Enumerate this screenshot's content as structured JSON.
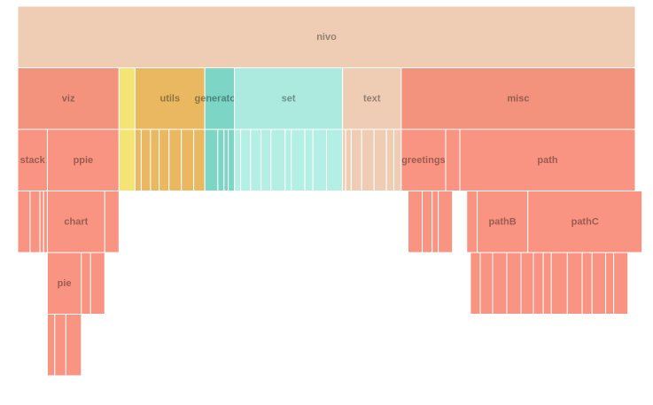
{
  "colors": {
    "peach": "#eecdb4",
    "salmon": "#f4937d",
    "coral": "#fa9482",
    "yellow": "#f4e476",
    "amber": "#e9b861",
    "teal": "#7dd5c5",
    "aqua": "#ace9df",
    "lightAqua": "#b3efe4"
  },
  "chart_data": {
    "type": "icicle",
    "title": "",
    "rows": [
      [
        {
          "name": "nivo",
          "value": 100,
          "color": "peach"
        }
      ],
      [
        {
          "name": "viz",
          "value": 16.4,
          "color": "salmon"
        },
        {
          "name": "",
          "value": 2.6,
          "color": "yellow"
        },
        {
          "name": "utils",
          "value": 11.3,
          "color": "amber"
        },
        {
          "name": "generators",
          "value": 4.8,
          "color": "teal"
        },
        {
          "name": "set",
          "value": 17.5,
          "color": "aqua"
        },
        {
          "name": "text",
          "value": 9.5,
          "color": "peach"
        },
        {
          "name": "misc",
          "value": 37.9,
          "color": "salmon"
        }
      ],
      [
        {
          "name": "stack",
          "value": 4.8,
          "color": "coral"
        },
        {
          "name": "ppie",
          "value": 11.6,
          "color": "coral"
        },
        {
          "name": "",
          "value": 2.6,
          "color": "yellow"
        },
        {
          "name": "",
          "value": 1.0,
          "color": "amber"
        },
        {
          "name": "",
          "value": 1.5,
          "color": "amber"
        },
        {
          "name": "",
          "value": 1.4,
          "color": "amber"
        },
        {
          "name": "",
          "value": 1.6,
          "color": "amber"
        },
        {
          "name": "",
          "value": 2.0,
          "color": "amber"
        },
        {
          "name": "",
          "value": 2.0,
          "color": "amber"
        },
        {
          "name": "",
          "value": 1.8,
          "color": "amber"
        },
        {
          "name": "",
          "value": 2.1,
          "color": "teal"
        },
        {
          "name": "",
          "value": 1.0,
          "color": "teal"
        },
        {
          "name": "",
          "value": 0.7,
          "color": "teal"
        },
        {
          "name": "",
          "value": 1.0,
          "color": "teal"
        },
        {
          "name": "",
          "value": 1.0,
          "color": "lightAqua"
        },
        {
          "name": "",
          "value": 1.6,
          "color": "lightAqua"
        },
        {
          "name": "",
          "value": 1.7,
          "color": "lightAqua"
        },
        {
          "name": "",
          "value": 1.6,
          "color": "lightAqua"
        },
        {
          "name": "",
          "value": 2.3,
          "color": "lightAqua"
        },
        {
          "name": "",
          "value": 1.0,
          "color": "lightAqua"
        },
        {
          "name": "",
          "value": 2.2,
          "color": "lightAqua"
        },
        {
          "name": "",
          "value": 1.3,
          "color": "lightAqua"
        },
        {
          "name": "",
          "value": 2.2,
          "color": "lightAqua"
        },
        {
          "name": "",
          "value": 2.6,
          "color": "lightAqua"
        },
        {
          "name": "",
          "value": 0.5,
          "color": "peach"
        },
        {
          "name": "",
          "value": 0.9,
          "color": "peach"
        },
        {
          "name": "",
          "value": 1.7,
          "color": "peach"
        },
        {
          "name": "",
          "value": 2.0,
          "color": "peach"
        },
        {
          "name": "",
          "value": 2.0,
          "color": "peach"
        },
        {
          "name": "",
          "value": 1.2,
          "color": "peach"
        },
        {
          "name": "",
          "value": 1.2,
          "color": "peach"
        },
        {
          "name": "greetings",
          "value": 7.2,
          "color": "coral"
        },
        {
          "name": "",
          "value": 2.3,
          "color": "coral"
        },
        {
          "name": "path",
          "value": 28.4,
          "color": "coral"
        }
      ],
      [
        {
          "name": "",
          "value": 2.0,
          "color": "coral"
        },
        {
          "name": "",
          "value": 1.6,
          "color": "coral"
        },
        {
          "name": "",
          "value": 0.6,
          "color": "coral"
        },
        {
          "name": "",
          "value": 0.6,
          "color": "coral"
        },
        {
          "name": "chart",
          "value": 9.3,
          "color": "coral"
        },
        {
          "name": "",
          "value": 2.3,
          "color": "coral"
        },
        {
          "gap": 46.8
        },
        {
          "name": "",
          "value": 2.3,
          "color": "coral"
        },
        {
          "name": "",
          "value": 1.6,
          "color": "coral"
        },
        {
          "name": "",
          "value": 1.0,
          "color": "coral"
        },
        {
          "name": "",
          "value": 2.3,
          "color": "coral"
        },
        {
          "gap": 2.3
        },
        {
          "name": "",
          "value": 1.7,
          "color": "coral"
        },
        {
          "name": "pathB",
          "value": 8.2,
          "color": "coral"
        },
        {
          "name": "pathC",
          "value": 18.5,
          "color": "coral"
        }
      ],
      [
        {
          "gap": 4.8
        },
        {
          "name": "pie",
          "value": 5.5,
          "color": "coral"
        },
        {
          "name": "",
          "value": 1.5,
          "color": "coral"
        },
        {
          "name": "",
          "value": 2.3,
          "color": "coral"
        },
        {
          "gap": 59.2
        },
        {
          "name": "",
          "value": 1.6,
          "color": "coral"
        },
        {
          "name": "",
          "value": 2.0,
          "color": "coral"
        },
        {
          "name": "",
          "value": 2.3,
          "color": "coral"
        },
        {
          "name": "",
          "value": 2.3,
          "color": "coral"
        },
        {
          "name": "",
          "value": 2.0,
          "color": "coral"
        },
        {
          "name": "",
          "value": 1.6,
          "color": "coral"
        },
        {
          "name": "",
          "value": 1.3,
          "color": "coral"
        },
        {
          "name": "",
          "value": 2.6,
          "color": "coral"
        },
        {
          "name": "",
          "value": 2.4,
          "color": "coral"
        },
        {
          "name": "",
          "value": 1.6,
          "color": "coral"
        },
        {
          "name": "",
          "value": 2.2,
          "color": "coral"
        },
        {
          "name": "",
          "value": 1.3,
          "color": "coral"
        },
        {
          "name": "",
          "value": 2.3,
          "color": "coral"
        }
      ],
      [
        {
          "gap": 4.8
        },
        {
          "name": "",
          "value": 1.2,
          "color": "coral"
        },
        {
          "name": "",
          "value": 1.8,
          "color": "coral"
        },
        {
          "name": "",
          "value": 2.5,
          "color": "coral"
        }
      ]
    ]
  }
}
